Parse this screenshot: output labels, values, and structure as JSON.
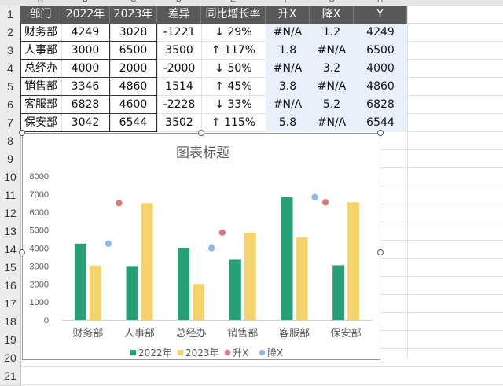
{
  "columns": [
    "A",
    "B",
    "C",
    "D",
    "E",
    "F",
    "G",
    "H"
  ],
  "rows": [
    "1",
    "2",
    "3",
    "4",
    "5",
    "6",
    "7",
    "8",
    "9",
    "10",
    "11",
    "12",
    "13",
    "14",
    "15",
    "16",
    "17",
    "18",
    "19",
    "20",
    "21"
  ],
  "table": {
    "headers": [
      "部门",
      "2022年",
      "2023年",
      "差异",
      "同比增长率",
      "升X",
      "降X",
      "Y"
    ],
    "rows": [
      [
        "财务部",
        "4249",
        "3028",
        "-1221",
        "↓ 29%",
        "#N/A",
        "1.2",
        "4249"
      ],
      [
        "人事部",
        "3000",
        "6500",
        "3500",
        "↑ 117%",
        "1.8",
        "#N/A",
        "6500"
      ],
      [
        "总经办",
        "4000",
        "2000",
        "-2000",
        "↓ 50%",
        "#N/A",
        "3.2",
        "4000"
      ],
      [
        "销售部",
        "3346",
        "4860",
        "1514",
        "↑ 45%",
        "3.8",
        "#N/A",
        "4860"
      ],
      [
        "客服部",
        "6828",
        "4600",
        "-2228",
        "↓ 33%",
        "#N/A",
        "5.2",
        "6828"
      ],
      [
        "保安部",
        "3042",
        "6544",
        "3502",
        "↑ 115%",
        "5.8",
        "#N/A",
        "6544"
      ]
    ]
  },
  "chart_data": {
    "type": "bar",
    "title": "图表标题",
    "categories": [
      "财务部",
      "人事部",
      "总经办",
      "销售部",
      "客服部",
      "保安部"
    ],
    "series": [
      {
        "name": "2022年",
        "type": "bar",
        "color": "#27a07a",
        "values": [
          4249,
          3000,
          4000,
          3346,
          6828,
          3042
        ]
      },
      {
        "name": "2023年",
        "type": "bar",
        "color": "#f5d36c",
        "values": [
          3028,
          6500,
          2000,
          4860,
          4600,
          6544
        ]
      },
      {
        "name": "升X",
        "type": "scatter",
        "color": "#d47b7b",
        "values": [
          null,
          6500,
          null,
          4860,
          null,
          6544
        ]
      },
      {
        "name": "降X",
        "type": "scatter",
        "color": "#8fb8e6",
        "values": [
          4249,
          null,
          4000,
          null,
          6828,
          null
        ]
      }
    ],
    "ylim": [
      0,
      8000
    ],
    "yticks": [
      0,
      1000,
      2000,
      3000,
      4000,
      5000,
      6000,
      7000,
      8000
    ],
    "grid": false,
    "legend": "bottom"
  }
}
